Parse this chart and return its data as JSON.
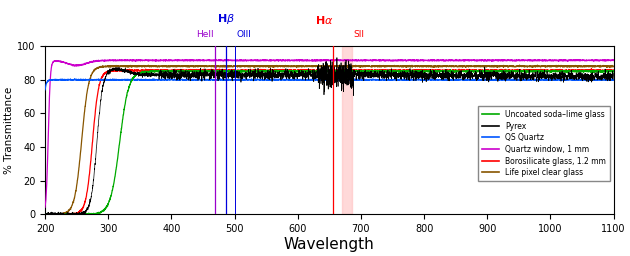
{
  "xlim": [
    200,
    1100
  ],
  "ylim": [
    0,
    100
  ],
  "xlabel": "Wavelength",
  "ylabel": "% Transmittance",
  "spectral_lines": {
    "HeII": {
      "wavelength": 468.6,
      "color": "#9900cc"
    },
    "Hbeta": {
      "wavelength": 486.1,
      "color": "#0000dd"
    },
    "OIII": {
      "wavelength": 500.7,
      "color": "#0000dd"
    },
    "Halpha": {
      "wavelength": 656.3,
      "color": "#ff0000"
    },
    "SII": {
      "wavelength": 671.6,
      "color": "#ff0000"
    }
  },
  "legend_entries": [
    {
      "label": "Uncoated soda–lime glass",
      "color": "#00aa00"
    },
    {
      "label": "Pyrex",
      "color": "#000000"
    },
    {
      "label": "QS Quartz",
      "color": "#0055ff"
    },
    {
      "label": "Quartz window, 1 mm",
      "color": "#cc00cc"
    },
    {
      "label": "Borosilicate glass, 1.2 mm",
      "color": "#ff0000"
    },
    {
      "label": "Life pixel clear glass",
      "color": "#885500"
    }
  ],
  "background_color": "#ffffff"
}
